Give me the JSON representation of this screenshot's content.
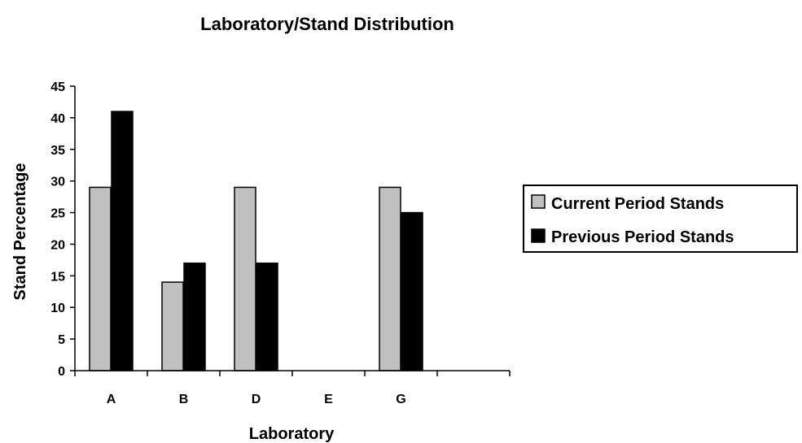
{
  "chart_data": {
    "type": "bar",
    "title": "Laboratory/Stand Distribution",
    "xlabel": "Laboratory",
    "ylabel": "Stand Percentage",
    "categories": [
      "A",
      "B",
      "D",
      "E",
      "G",
      ""
    ],
    "series": [
      {
        "name": "Current Period Stands",
        "values": [
          29,
          14,
          29,
          0,
          29,
          0
        ],
        "color": "#c0c0c0"
      },
      {
        "name": "Previous Period Stands",
        "values": [
          41,
          17,
          17,
          0,
          25,
          0
        ],
        "color": "#000000"
      }
    ],
    "ylim": [
      0,
      45
    ],
    "yticks": [
      0,
      5,
      10,
      15,
      20,
      25,
      30,
      35,
      40,
      45
    ],
    "grid": false,
    "legend": "right"
  }
}
